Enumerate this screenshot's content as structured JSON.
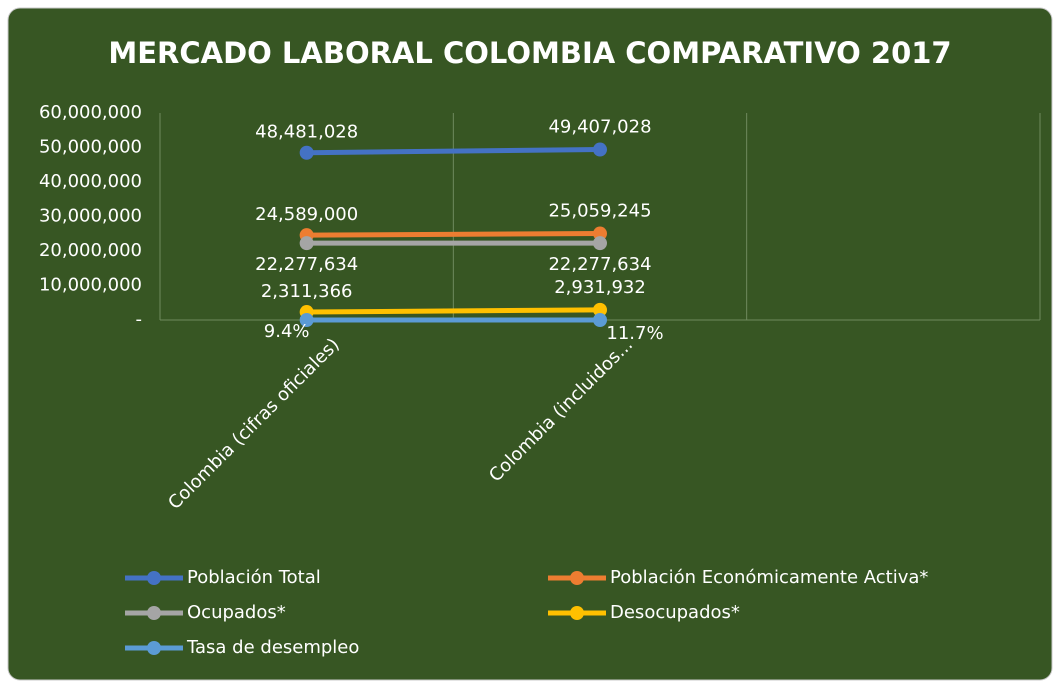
{
  "chart_data": {
    "type": "line",
    "title": "MERCADO LABORAL COLOMBIA COMPARATIVO 2017",
    "categories": [
      "Colombia (cifras oficiales)",
      "Colombia   (incluidos...",
      null
    ],
    "series": [
      {
        "name": "Población Total",
        "color": "#4472c4",
        "values": [
          48481028,
          49407028,
          null
        ],
        "value_labels": [
          "48,481,028",
          "49,407,028",
          null
        ]
      },
      {
        "name": "Población Económicamente Activa*",
        "color": "#ed7d31",
        "values": [
          24589000,
          25059245,
          null
        ],
        "value_labels": [
          "24,589,000",
          "25,059,245",
          null
        ]
      },
      {
        "name": "Ocupados*",
        "color": "#a5a5a5",
        "values": [
          22277634,
          22277634,
          null
        ],
        "value_labels": [
          "22,277,634",
          "22,277,634",
          null
        ]
      },
      {
        "name": "Desocupados*",
        "color": "#ffc000",
        "values": [
          2311366,
          2931932,
          null
        ],
        "value_labels": [
          "2,311,366",
          "2,931,932",
          null
        ]
      },
      {
        "name": "Tasa de desempleo",
        "color": "#5b9bd5",
        "values": [
          9.4,
          11.7,
          null
        ],
        "value_labels": [
          "9.4%",
          "11.7%",
          null
        ]
      }
    ],
    "ylim": [
      0,
      60000000
    ],
    "yticks": [
      {
        "value": 0,
        "label": "-"
      },
      {
        "value": 10000000,
        "label": "10,000,000"
      },
      {
        "value": 20000000,
        "label": "20,000,000"
      },
      {
        "value": 30000000,
        "label": "30,000,000"
      },
      {
        "value": 40000000,
        "label": "40,000,000"
      },
      {
        "value": 50000000,
        "label": "50,000,000"
      },
      {
        "value": 60000000,
        "label": "60,000,000"
      }
    ],
    "grid": true
  }
}
